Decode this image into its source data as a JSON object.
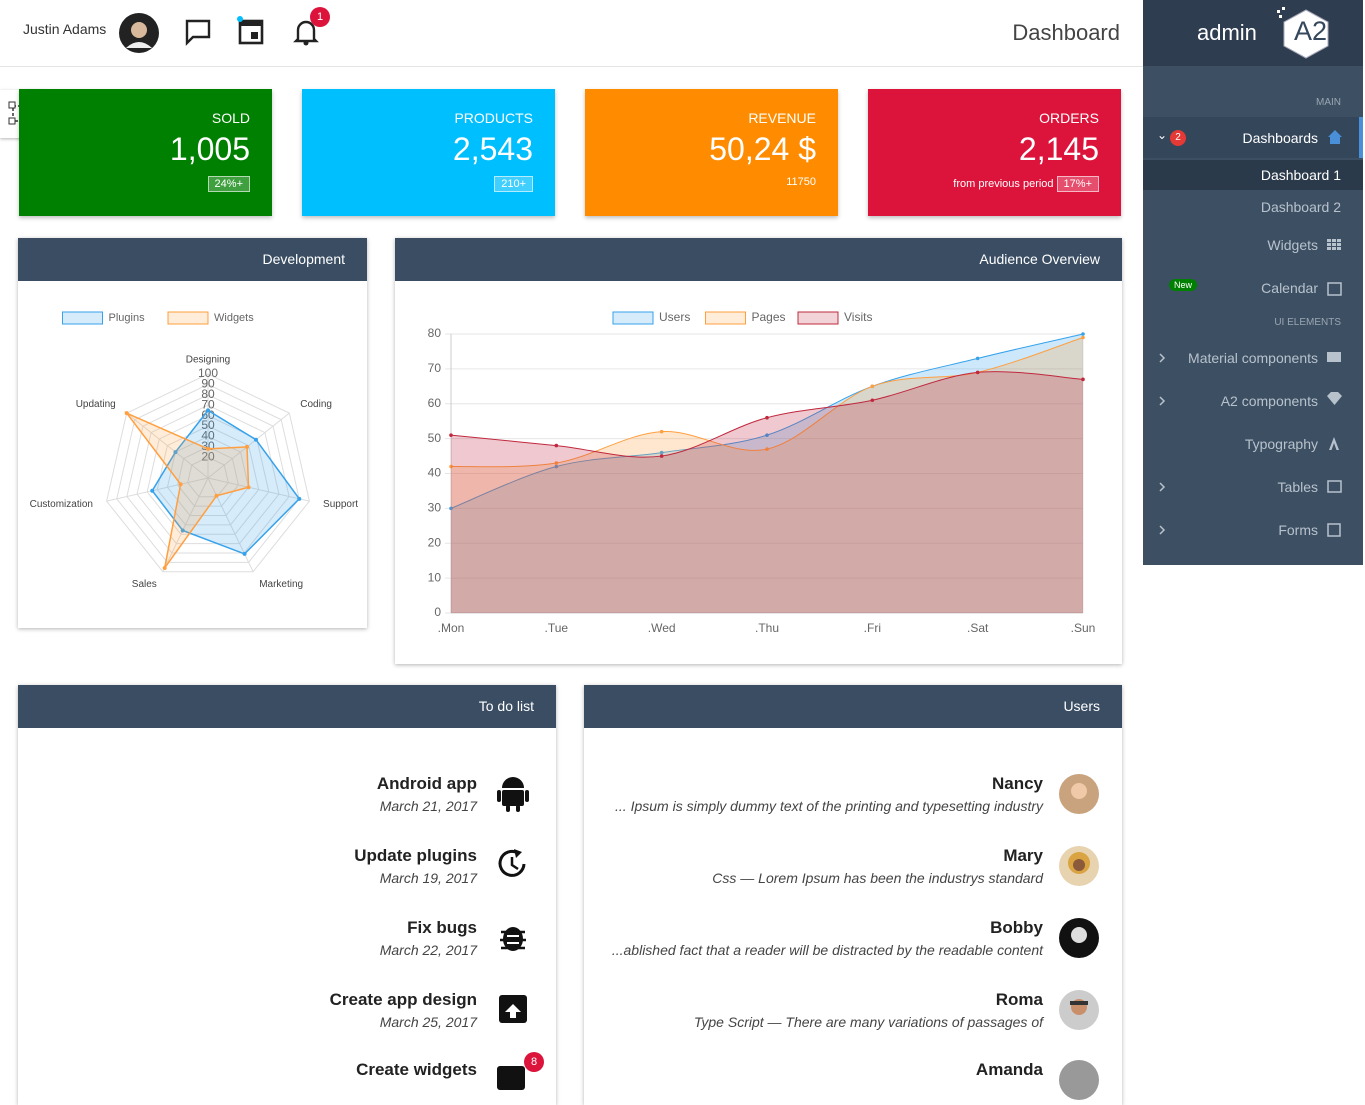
{
  "header": {
    "user": "Justin Adams",
    "notifications": 1,
    "title": "Dashboard"
  },
  "sidebar": {
    "brand": "admin",
    "logo": "A2",
    "main_label": "MAIN",
    "items": [
      {
        "label": "Dashboards",
        "badge": 2
      },
      {
        "label": "Dashboard 1"
      },
      {
        "label": "Dashboard 2"
      },
      {
        "label": "Widgets"
      },
      {
        "label": "Calendar",
        "badge": "New"
      }
    ],
    "ui_label": "UI ELEMENTS",
    "ui_items": [
      "Material components",
      "A2 components",
      "Typography",
      "Tables",
      "Forms"
    ]
  },
  "stats": [
    {
      "label": "SOLD",
      "value": "1,005",
      "note": "24%+"
    },
    {
      "label": "PRODUCTS",
      "value": "2,543",
      "note": "210+"
    },
    {
      "label": "REVENUE",
      "value": "50,24 $",
      "note": "11750"
    },
    {
      "label": "ORDERS",
      "value": "2,145",
      "sub": "from previous period",
      "note": "17%+"
    }
  ],
  "chart_data": [
    {
      "type": "radar",
      "title": "Development",
      "categories": [
        "Designing",
        "Coding",
        "Support",
        "Marketing",
        "Sales",
        "Customization",
        "Updating"
      ],
      "series": [
        {
          "name": "Plugins",
          "color": "#36a2eb",
          "values": [
            65,
            59,
            90,
            81,
            56,
            55,
            40
          ]
        },
        {
          "name": "Widgets",
          "color": "#ff9f40",
          "values": [
            28,
            48,
            40,
            19,
            96,
            27,
            100
          ]
        }
      ],
      "rlim": [
        0,
        100
      ],
      "rticks": [
        20,
        30,
        40,
        50,
        60,
        70,
        80,
        90,
        100
      ]
    },
    {
      "type": "line",
      "title": "Audience Overview",
      "categories": [
        ".Mon",
        ".Tue",
        ".Wed",
        ".Thu",
        ".Fri",
        ".Sat",
        ".Sun"
      ],
      "series": [
        {
          "name": "Users",
          "color": "#36a2eb",
          "values": [
            30,
            42,
            46,
            51,
            65,
            73,
            80
          ]
        },
        {
          "name": "Pages",
          "color": "#ff9f40",
          "values": [
            42,
            43,
            52,
            47,
            65,
            69,
            79
          ]
        },
        {
          "name": "Visits",
          "color": "#c0283e",
          "values": [
            51,
            48,
            45,
            56,
            61,
            69,
            67
          ]
        }
      ],
      "ylim": [
        0,
        80
      ],
      "yticks": [
        0,
        10,
        20,
        30,
        40,
        50,
        60,
        70,
        80
      ],
      "grid": true,
      "fill": true
    }
  ],
  "todo": {
    "title": "To do list",
    "items": [
      {
        "title": "Android app",
        "date": "March 21, 2017"
      },
      {
        "title": "Update plugins",
        "date": "March 19, 2017"
      },
      {
        "title": "Fix bugs",
        "date": "March 22, 2017"
      },
      {
        "title": "Create app design",
        "date": "March 25, 2017"
      },
      {
        "title": "Create widgets",
        "badge": 8
      }
    ]
  },
  "users": {
    "title": "Users",
    "items": [
      {
        "name": "Nancy",
        "text": "... Ipsum is simply dummy text of the printing and typesetting industry"
      },
      {
        "name": "Mary",
        "text": "Css — Lorem Ipsum has been the industrys standard"
      },
      {
        "name": "Bobby",
        "text": "...ablished fact that a reader will be distracted by the readable content"
      },
      {
        "name": "Roma",
        "text": "Type Script — There are many variations of passages of"
      },
      {
        "name": "Amanda"
      }
    ]
  }
}
